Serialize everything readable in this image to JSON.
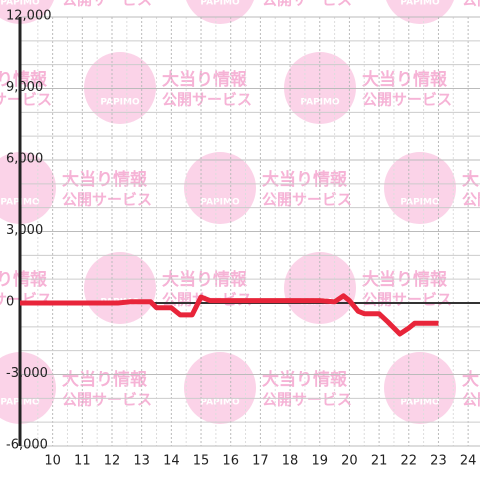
{
  "chart_data": {
    "type": "line",
    "watermark": {
      "title": "大当り情報",
      "subtitle": "公開サービス",
      "logo": "PAPIMO"
    },
    "x": [
      8.9,
      12.2,
      12.6,
      13.3,
      13.5,
      14.0,
      14.3,
      14.7,
      15.0,
      15.3,
      16.0,
      17.0,
      18.0,
      19.0,
      19.5,
      19.8,
      20.0,
      20.3,
      20.5,
      21.0,
      21.3,
      21.7,
      22.0,
      22.2,
      23.0
    ],
    "series": [
      {
        "color": "#e8253a",
        "values": [
          0,
          0,
          50,
          50,
          -200,
          -200,
          -500,
          -500,
          250,
          100,
          100,
          100,
          100,
          100,
          50,
          300,
          100,
          -350,
          -450,
          -450,
          -800,
          -1300,
          -1050,
          -850,
          -850
        ]
      }
    ],
    "xlim": [
      8.9,
      24.4
    ],
    "xticks": [
      10,
      11,
      12,
      13,
      14,
      15,
      16,
      17,
      18,
      19,
      20,
      21,
      22,
      23,
      24
    ],
    "ylim": [
      -6000,
      12000
    ],
    "yticks": [
      {
        "value": -6000,
        "label": "-6,000"
      },
      {
        "value": -3000,
        "label": "-3,000"
      },
      0,
      {
        "value": 3000,
        "label": "3,000"
      },
      {
        "value": 6000,
        "label": "6,000"
      },
      {
        "value": 9000,
        "label": "9,000"
      },
      {
        "value": 12000,
        "label": "12,000"
      }
    ],
    "grid": true
  }
}
